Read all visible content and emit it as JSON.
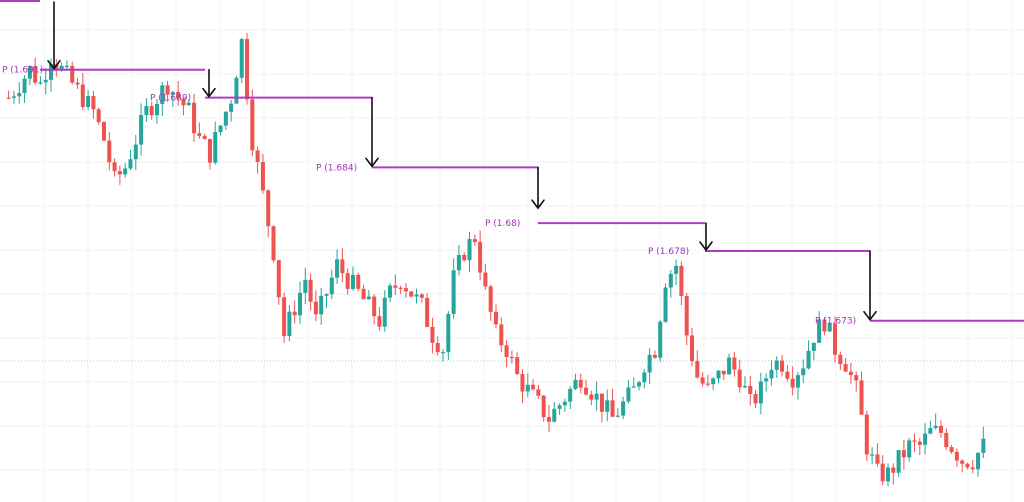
{
  "chart_data": {
    "type": "candlestick",
    "title": "",
    "xlabel": "",
    "ylabel": "",
    "ylim": [
      1.66,
      1.696
    ],
    "grid": true,
    "candles_count": 185,
    "price_path": [
      1.689,
      1.69,
      1.691,
      1.69,
      1.692,
      1.691,
      1.69,
      1.689,
      1.688,
      1.686,
      1.683,
      1.684,
      1.686,
      1.688,
      1.689,
      1.69,
      1.689,
      1.688,
      1.686,
      1.685,
      1.687,
      1.689,
      1.693,
      1.686,
      1.682,
      1.678,
      1.672,
      1.674,
      1.676,
      1.673,
      1.675,
      1.677,
      1.676,
      1.675,
      1.674,
      1.673,
      1.675,
      1.676,
      1.675,
      1.674,
      1.672,
      1.671,
      1.676,
      1.678,
      1.679,
      1.675,
      1.672,
      1.671,
      1.669,
      1.668,
      1.667,
      1.666,
      1.667,
      1.668,
      1.669,
      1.668,
      1.667,
      1.666,
      1.667,
      1.668,
      1.67,
      1.671,
      1.676,
      1.677,
      1.672,
      1.669,
      1.668,
      1.669,
      1.67,
      1.669,
      1.667,
      1.668,
      1.67,
      1.67,
      1.669,
      1.67,
      1.672,
      1.673,
      1.671,
      1.67,
      1.668,
      1.664,
      1.662,
      1.662,
      1.663,
      1.664,
      1.664,
      1.665,
      1.665,
      1.664,
      1.663,
      1.663,
      1.664
    ],
    "levels": [
      {
        "label": "P (1.691)",
        "price": 1.691
      },
      {
        "label": "P (1.689)",
        "price": 1.689
      },
      {
        "label": "P (1.684)",
        "price": 1.684
      },
      {
        "label": "P (1.68)",
        "price": 1.68
      },
      {
        "label": "P (1.678)",
        "price": 1.678
      },
      {
        "label": "P (1.673)",
        "price": 1.673
      }
    ],
    "arrows": [
      {
        "from_price": 1.694,
        "to_price": 1.691
      },
      {
        "from_price": 1.691,
        "to_price": 1.689
      },
      {
        "from_price": 1.689,
        "to_price": 1.684
      },
      {
        "from_price": 1.684,
        "to_price": 1.681
      },
      {
        "from_price": 1.68,
        "to_price": 1.678
      },
      {
        "from_price": 1.678,
        "to_price": 1.673
      }
    ],
    "colors": {
      "up": "#26a69a",
      "down": "#ef5350",
      "level": "#b13bc4",
      "label": "#a42fb9",
      "arrow": "#111111",
      "grid": "#f0f3f7"
    }
  }
}
